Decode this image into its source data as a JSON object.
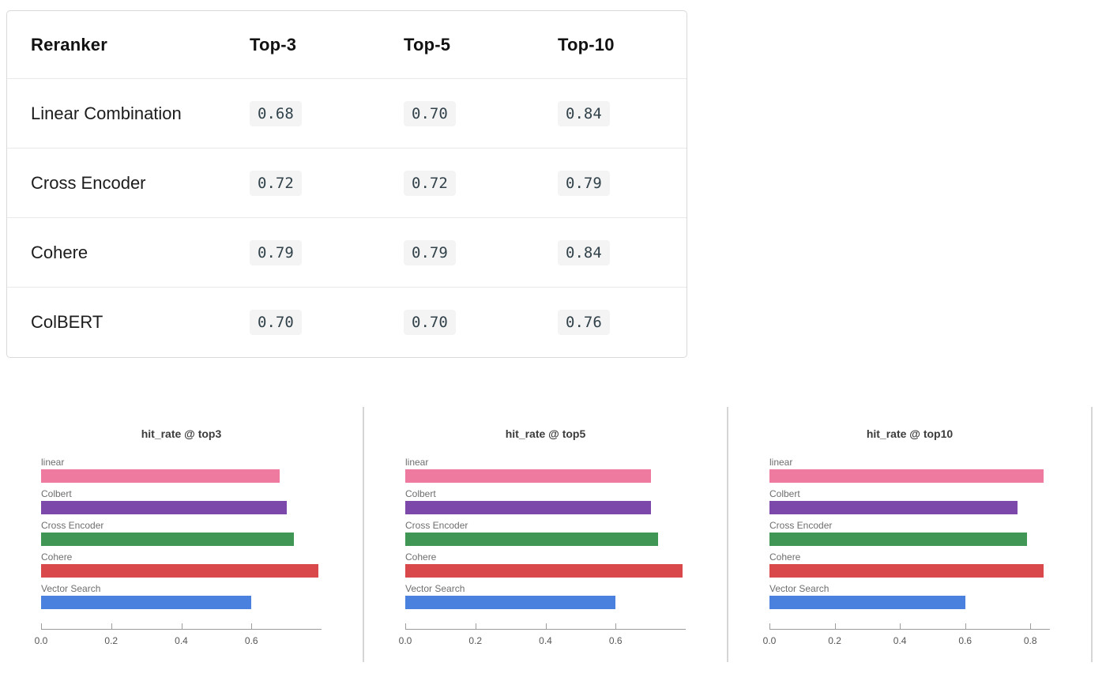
{
  "table": {
    "headers": [
      "Reranker",
      "Top-3",
      "Top-5",
      "Top-10"
    ],
    "rows": [
      {
        "name": "Linear Combination",
        "values": [
          "0.68",
          "0.70",
          "0.84"
        ]
      },
      {
        "name": "Cross Encoder",
        "values": [
          "0.72",
          "0.72",
          "0.79"
        ]
      },
      {
        "name": "Cohere",
        "values": [
          "0.79",
          "0.79",
          "0.84"
        ]
      },
      {
        "name": "ColBERT",
        "values": [
          "0.70",
          "0.70",
          "0.76"
        ]
      }
    ]
  },
  "colors": {
    "chip_background": "#f4f4f4",
    "table_border": "#d9d9d9",
    "row_divider": "#e9e9e9",
    "chart_divider": "#d6d6d6",
    "axis_line": "#9c9c9c",
    "bar_pink": "#ee7aa0",
    "bar_purple": "#7c49aa",
    "bar_green": "#3f9655",
    "bar_red": "#d9494b",
    "bar_blue": "#4a81df"
  },
  "chart_data": [
    {
      "type": "bar",
      "orientation": "horizontal",
      "title": "hit_rate @ top3",
      "categories": [
        "linear",
        "Colbert",
        "Cross Encoder",
        "Cohere",
        "Vector Search"
      ],
      "values": [
        0.68,
        0.7,
        0.72,
        0.79,
        0.6
      ],
      "bar_colors": [
        "#ee7aa0",
        "#7c49aa",
        "#3f9655",
        "#d9494b",
        "#4a81df"
      ],
      "xlabel": "",
      "ylabel": "",
      "xlim": [
        0,
        0.8
      ],
      "xticks": [
        0.0,
        0.2,
        0.4,
        0.6
      ],
      "grid": false,
      "legend": "none"
    },
    {
      "type": "bar",
      "orientation": "horizontal",
      "title": "hit_rate @ top5",
      "categories": [
        "linear",
        "Colbert",
        "Cross Encoder",
        "Cohere",
        "Vector Search"
      ],
      "values": [
        0.7,
        0.7,
        0.72,
        0.79,
        0.6
      ],
      "bar_colors": [
        "#ee7aa0",
        "#7c49aa",
        "#3f9655",
        "#d9494b",
        "#4a81df"
      ],
      "xlabel": "",
      "ylabel": "",
      "xlim": [
        0,
        0.8
      ],
      "xticks": [
        0.0,
        0.2,
        0.4,
        0.6
      ],
      "grid": false,
      "legend": "none"
    },
    {
      "type": "bar",
      "orientation": "horizontal",
      "title": "hit_rate @ top10",
      "categories": [
        "linear",
        "Colbert",
        "Cross Encoder",
        "Cohere",
        "Vector Search"
      ],
      "values": [
        0.84,
        0.76,
        0.79,
        0.84,
        0.6
      ],
      "bar_colors": [
        "#ee7aa0",
        "#7c49aa",
        "#3f9655",
        "#d9494b",
        "#4a81df"
      ],
      "xlabel": "",
      "ylabel": "",
      "xlim": [
        0,
        0.86
      ],
      "xticks": [
        0.0,
        0.2,
        0.4,
        0.6,
        0.8
      ],
      "grid": false,
      "legend": "none"
    }
  ]
}
